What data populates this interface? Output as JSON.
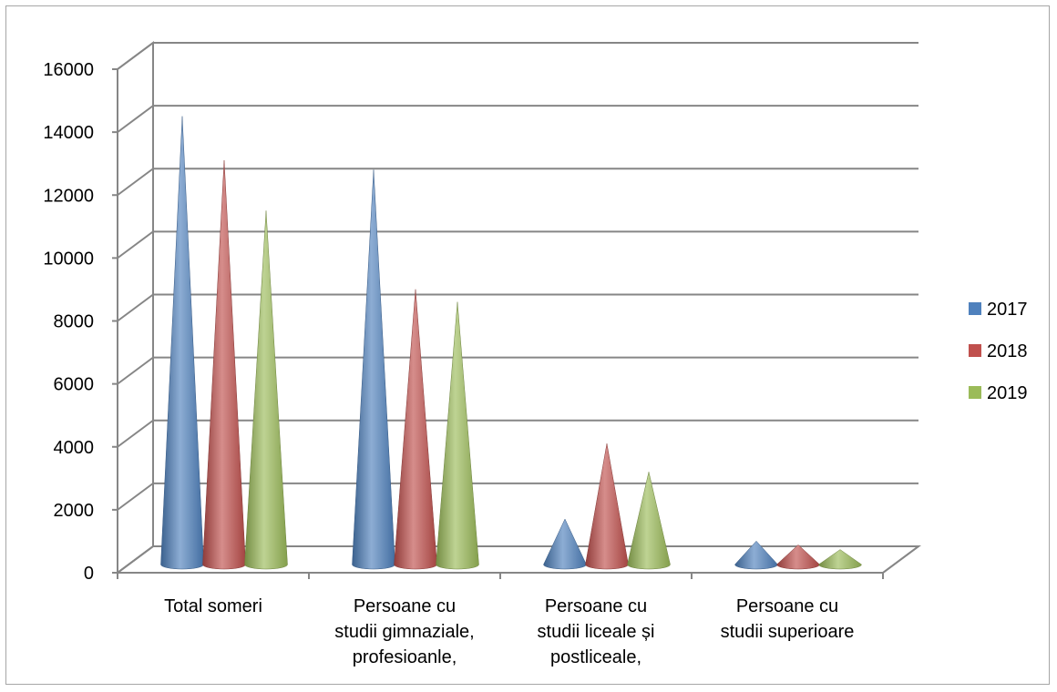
{
  "chart_data": {
    "type": "bar",
    "style": "3d-cone",
    "categories": [
      [
        "Total someri"
      ],
      [
        "Persoane cu",
        "studii gimnaziale,",
        "profesioanle,"
      ],
      [
        "Persoane cu",
        "studii liceale  și",
        "postliceale,"
      ],
      [
        "Persoane cu",
        "studii superioare"
      ]
    ],
    "series": [
      {
        "name": "2017",
        "color": "#4f81bd",
        "values": [
          14100,
          12400,
          1300,
          600
        ]
      },
      {
        "name": "2018",
        "color": "#c0504d",
        "values": [
          12700,
          8600,
          3700,
          480
        ]
      },
      {
        "name": "2019",
        "color": "#9bbb59",
        "values": [
          11100,
          8200,
          2800,
          330
        ]
      }
    ],
    "yticks": [
      "0",
      "2000",
      "4000",
      "6000",
      "8000",
      "10000",
      "12000",
      "14000",
      "16000"
    ],
    "ylim": [
      0,
      16000
    ],
    "grid": true,
    "legend": "right"
  }
}
